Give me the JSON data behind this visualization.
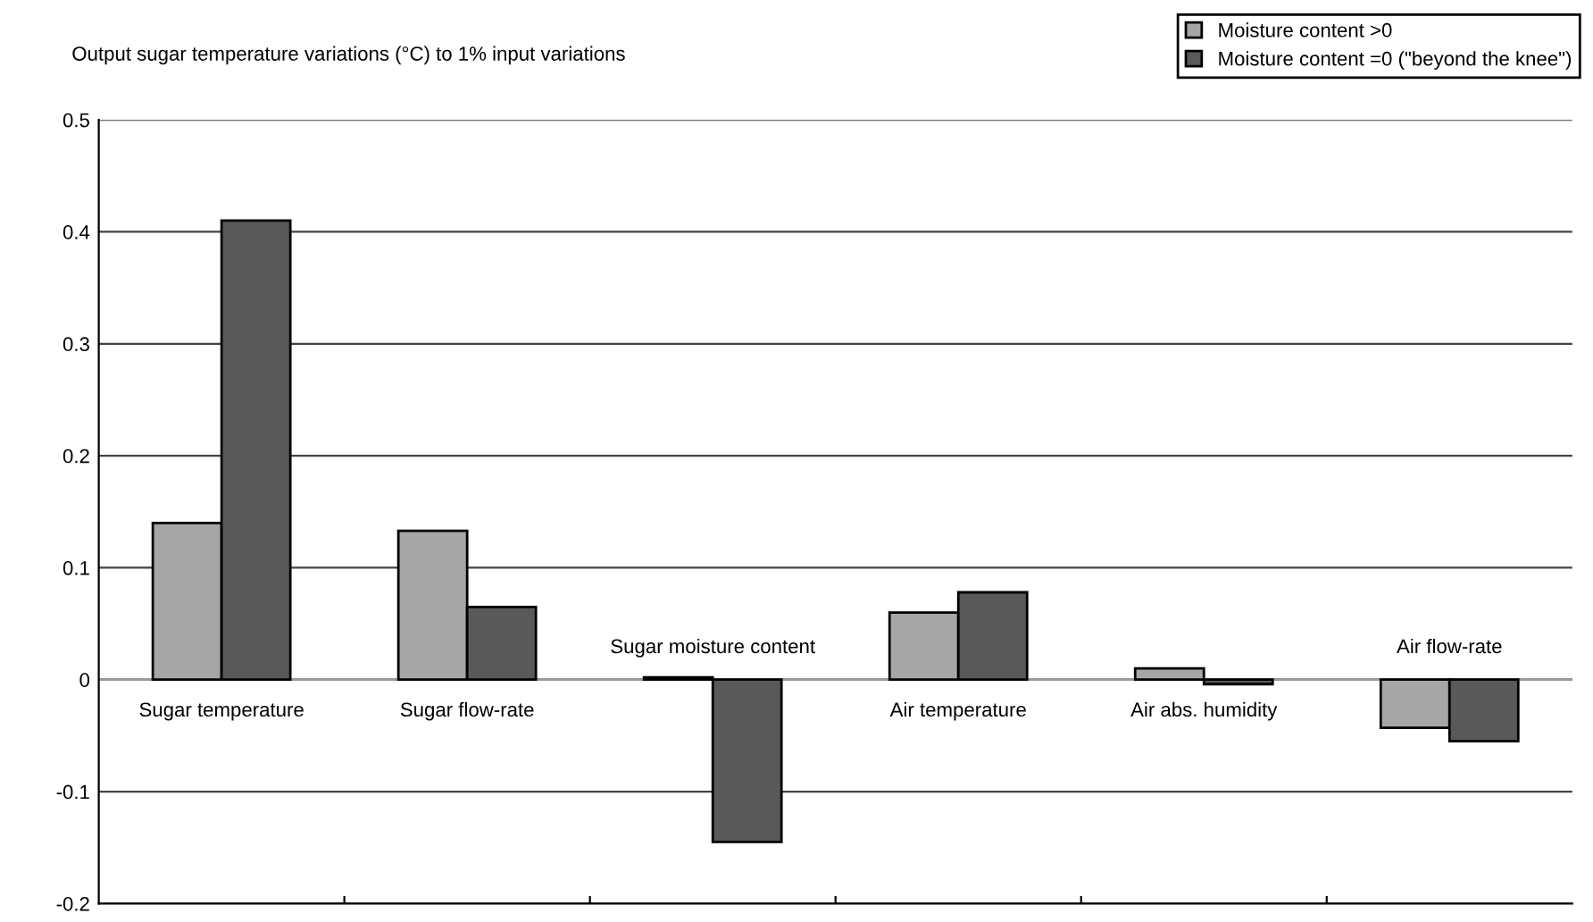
{
  "chart_data": {
    "type": "bar",
    "title": "Output sugar temperature variations (°C) to 1% input variations",
    "categories": [
      "Sugar temperature",
      "Sugar flow-rate",
      "Sugar moisture content",
      "Air temperature",
      "Air abs. humidity",
      "Air flow-rate"
    ],
    "series": [
      {
        "name": "Moisture content >0",
        "color": "#a6a6a6",
        "values": [
          0.14,
          0.133,
          0.002,
          0.06,
          0.01,
          -0.043
        ]
      },
      {
        "name": "Moisture content =0 (\"beyond the knee\")",
        "color": "#595959",
        "values": [
          0.41,
          0.065,
          -0.145,
          0.078,
          -0.004,
          -0.055
        ]
      }
    ],
    "ylim": [
      -0.2,
      0.5
    ],
    "yticks": [
      -0.2,
      -0.1,
      0,
      0.1,
      0.2,
      0.3,
      0.4,
      0.5
    ],
    "grid": "y",
    "legend": "top right"
  }
}
